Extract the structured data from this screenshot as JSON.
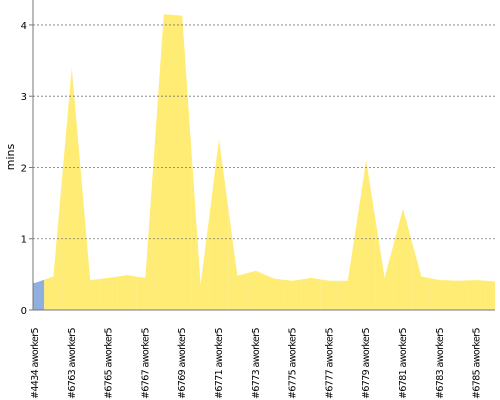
{
  "chart_data": {
    "type": "area",
    "ylabel": "mins",
    "categories": [
      "#4434 aworker5",
      null,
      "#6763 aworker5",
      null,
      "#6765 aworker5",
      null,
      "#6767 aworker5",
      null,
      "#6769 aworker5",
      null,
      "#6771 aworker5",
      null,
      "#6773 aworker5",
      null,
      "#6775 aworker5",
      null,
      "#6777 aworker5",
      null,
      "#6779 aworker5",
      null,
      "#6781 aworker5",
      null,
      "#6783 aworker5",
      null,
      "#6785 aworker5",
      null
    ],
    "values": [
      0.38,
      0.47,
      3.4,
      0.42,
      0.45,
      0.49,
      0.45,
      4.15,
      4.13,
      0.35,
      2.4,
      0.48,
      0.55,
      0.44,
      0.41,
      0.45,
      0.41,
      0.41,
      2.1,
      0.45,
      1.42,
      0.47,
      0.42,
      0.41,
      0.42,
      0.4
    ],
    "point_colors": [
      "#8fb0de",
      "#ffec74",
      "#ffec74",
      "#ffec74",
      "#ffec74",
      "#ffec74",
      "#ffec74",
      "#ffec74",
      "#ffec74",
      "#ffec74",
      "#ffec74",
      "#ffec74",
      "#ffec74",
      "#ffec74",
      "#ffec74",
      "#ffec74",
      "#ffec74",
      "#ffec74",
      "#ffec74",
      "#ffec74",
      "#ffec74",
      "#ffec74",
      "#ffec74",
      "#ffec74",
      "#ffec74",
      "#ffec74"
    ],
    "ylim": [
      0,
      4.35
    ],
    "yticks": [
      0,
      1,
      2,
      3,
      4
    ],
    "grid": true
  }
}
